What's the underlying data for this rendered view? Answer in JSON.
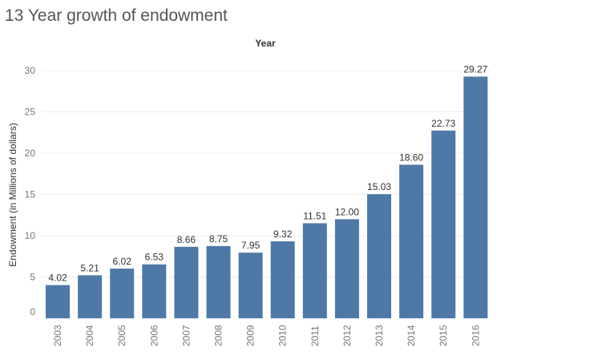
{
  "chart_data": {
    "type": "bar",
    "title": "13 Year growth of endowment",
    "xlabel": "Year",
    "ylabel": "Endowment (in Millions of dollars)",
    "categories": [
      "2003",
      "2004",
      "2005",
      "2006",
      "2007",
      "2008",
      "2009",
      "2010",
      "2011",
      "2012",
      "2013",
      "2014",
      "2015",
      "2016"
    ],
    "values": [
      4.02,
      5.21,
      6.02,
      6.53,
      8.66,
      8.75,
      7.95,
      9.32,
      11.51,
      12.0,
      15.03,
      18.6,
      22.73,
      29.27
    ],
    "value_labels": [
      "4.02",
      "5.21",
      "6.02",
      "6.53",
      "8.66",
      "8.75",
      "7.95",
      "9.32",
      "11.51",
      "12.00",
      "15.03",
      "18.60",
      "22.73",
      "29.27"
    ],
    "yticks": [
      0,
      5,
      10,
      15,
      20,
      25,
      30
    ],
    "ylim": [
      0,
      30
    ],
    "grid": true,
    "bar_color": "#4e79a7"
  }
}
